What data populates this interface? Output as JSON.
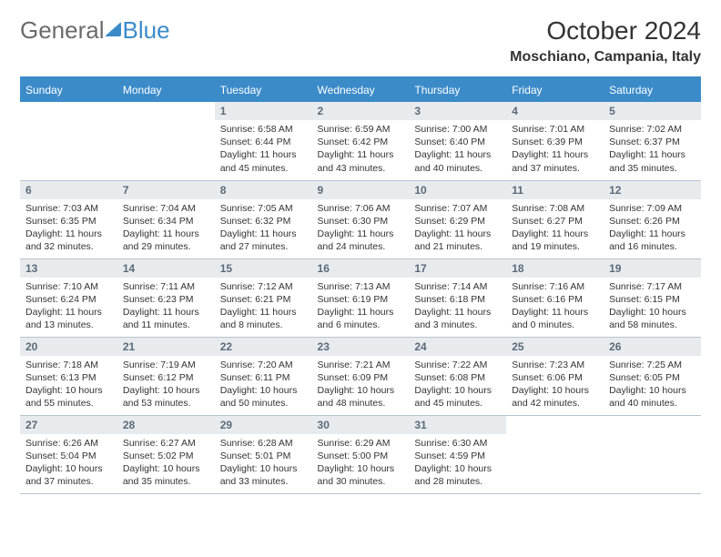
{
  "brand": {
    "part1": "General",
    "part2": "Blue"
  },
  "title": "October 2024",
  "location": "Moschiano, Campania, Italy",
  "colors": {
    "accent": "#3b8bc9",
    "header_bg": "#3b8bc9",
    "daynum_bg": "#e8ebee",
    "border": "#b8c3cc"
  },
  "dayHeaders": [
    "Sunday",
    "Monday",
    "Tuesday",
    "Wednesday",
    "Thursday",
    "Friday",
    "Saturday"
  ],
  "weeks": [
    [
      {
        "n": "",
        "sr": "",
        "ss": "",
        "dl": ""
      },
      {
        "n": "",
        "sr": "",
        "ss": "",
        "dl": ""
      },
      {
        "n": "1",
        "sr": "Sunrise: 6:58 AM",
        "ss": "Sunset: 6:44 PM",
        "dl": "Daylight: 11 hours and 45 minutes."
      },
      {
        "n": "2",
        "sr": "Sunrise: 6:59 AM",
        "ss": "Sunset: 6:42 PM",
        "dl": "Daylight: 11 hours and 43 minutes."
      },
      {
        "n": "3",
        "sr": "Sunrise: 7:00 AM",
        "ss": "Sunset: 6:40 PM",
        "dl": "Daylight: 11 hours and 40 minutes."
      },
      {
        "n": "4",
        "sr": "Sunrise: 7:01 AM",
        "ss": "Sunset: 6:39 PM",
        "dl": "Daylight: 11 hours and 37 minutes."
      },
      {
        "n": "5",
        "sr": "Sunrise: 7:02 AM",
        "ss": "Sunset: 6:37 PM",
        "dl": "Daylight: 11 hours and 35 minutes."
      }
    ],
    [
      {
        "n": "6",
        "sr": "Sunrise: 7:03 AM",
        "ss": "Sunset: 6:35 PM",
        "dl": "Daylight: 11 hours and 32 minutes."
      },
      {
        "n": "7",
        "sr": "Sunrise: 7:04 AM",
        "ss": "Sunset: 6:34 PM",
        "dl": "Daylight: 11 hours and 29 minutes."
      },
      {
        "n": "8",
        "sr": "Sunrise: 7:05 AM",
        "ss": "Sunset: 6:32 PM",
        "dl": "Daylight: 11 hours and 27 minutes."
      },
      {
        "n": "9",
        "sr": "Sunrise: 7:06 AM",
        "ss": "Sunset: 6:30 PM",
        "dl": "Daylight: 11 hours and 24 minutes."
      },
      {
        "n": "10",
        "sr": "Sunrise: 7:07 AM",
        "ss": "Sunset: 6:29 PM",
        "dl": "Daylight: 11 hours and 21 minutes."
      },
      {
        "n": "11",
        "sr": "Sunrise: 7:08 AM",
        "ss": "Sunset: 6:27 PM",
        "dl": "Daylight: 11 hours and 19 minutes."
      },
      {
        "n": "12",
        "sr": "Sunrise: 7:09 AM",
        "ss": "Sunset: 6:26 PM",
        "dl": "Daylight: 11 hours and 16 minutes."
      }
    ],
    [
      {
        "n": "13",
        "sr": "Sunrise: 7:10 AM",
        "ss": "Sunset: 6:24 PM",
        "dl": "Daylight: 11 hours and 13 minutes."
      },
      {
        "n": "14",
        "sr": "Sunrise: 7:11 AM",
        "ss": "Sunset: 6:23 PM",
        "dl": "Daylight: 11 hours and 11 minutes."
      },
      {
        "n": "15",
        "sr": "Sunrise: 7:12 AM",
        "ss": "Sunset: 6:21 PM",
        "dl": "Daylight: 11 hours and 8 minutes."
      },
      {
        "n": "16",
        "sr": "Sunrise: 7:13 AM",
        "ss": "Sunset: 6:19 PM",
        "dl": "Daylight: 11 hours and 6 minutes."
      },
      {
        "n": "17",
        "sr": "Sunrise: 7:14 AM",
        "ss": "Sunset: 6:18 PM",
        "dl": "Daylight: 11 hours and 3 minutes."
      },
      {
        "n": "18",
        "sr": "Sunrise: 7:16 AM",
        "ss": "Sunset: 6:16 PM",
        "dl": "Daylight: 11 hours and 0 minutes."
      },
      {
        "n": "19",
        "sr": "Sunrise: 7:17 AM",
        "ss": "Sunset: 6:15 PM",
        "dl": "Daylight: 10 hours and 58 minutes."
      }
    ],
    [
      {
        "n": "20",
        "sr": "Sunrise: 7:18 AM",
        "ss": "Sunset: 6:13 PM",
        "dl": "Daylight: 10 hours and 55 minutes."
      },
      {
        "n": "21",
        "sr": "Sunrise: 7:19 AM",
        "ss": "Sunset: 6:12 PM",
        "dl": "Daylight: 10 hours and 53 minutes."
      },
      {
        "n": "22",
        "sr": "Sunrise: 7:20 AM",
        "ss": "Sunset: 6:11 PM",
        "dl": "Daylight: 10 hours and 50 minutes."
      },
      {
        "n": "23",
        "sr": "Sunrise: 7:21 AM",
        "ss": "Sunset: 6:09 PM",
        "dl": "Daylight: 10 hours and 48 minutes."
      },
      {
        "n": "24",
        "sr": "Sunrise: 7:22 AM",
        "ss": "Sunset: 6:08 PM",
        "dl": "Daylight: 10 hours and 45 minutes."
      },
      {
        "n": "25",
        "sr": "Sunrise: 7:23 AM",
        "ss": "Sunset: 6:06 PM",
        "dl": "Daylight: 10 hours and 42 minutes."
      },
      {
        "n": "26",
        "sr": "Sunrise: 7:25 AM",
        "ss": "Sunset: 6:05 PM",
        "dl": "Daylight: 10 hours and 40 minutes."
      }
    ],
    [
      {
        "n": "27",
        "sr": "Sunrise: 6:26 AM",
        "ss": "Sunset: 5:04 PM",
        "dl": "Daylight: 10 hours and 37 minutes."
      },
      {
        "n": "28",
        "sr": "Sunrise: 6:27 AM",
        "ss": "Sunset: 5:02 PM",
        "dl": "Daylight: 10 hours and 35 minutes."
      },
      {
        "n": "29",
        "sr": "Sunrise: 6:28 AM",
        "ss": "Sunset: 5:01 PM",
        "dl": "Daylight: 10 hours and 33 minutes."
      },
      {
        "n": "30",
        "sr": "Sunrise: 6:29 AM",
        "ss": "Sunset: 5:00 PM",
        "dl": "Daylight: 10 hours and 30 minutes."
      },
      {
        "n": "31",
        "sr": "Sunrise: 6:30 AM",
        "ss": "Sunset: 4:59 PM",
        "dl": "Daylight: 10 hours and 28 minutes."
      },
      {
        "n": "",
        "sr": "",
        "ss": "",
        "dl": ""
      },
      {
        "n": "",
        "sr": "",
        "ss": "",
        "dl": ""
      }
    ]
  ]
}
